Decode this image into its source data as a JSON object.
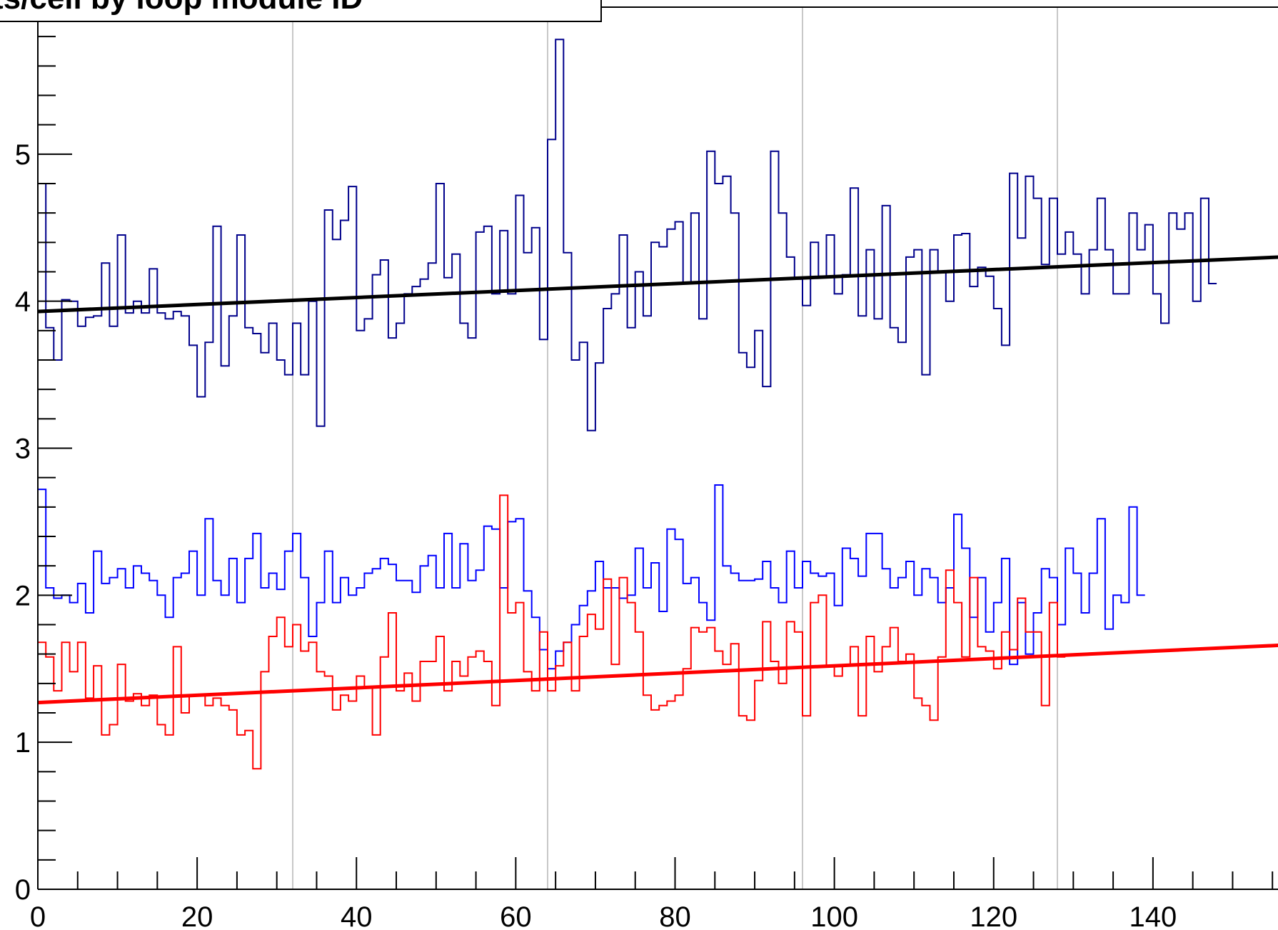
{
  "chart_data": {
    "type": "line",
    "title": "ts/cell by loop module ID",
    "xlabel": "",
    "ylabel": "",
    "xlim": [
      0,
      160
    ],
    "ylim": [
      0,
      6
    ],
    "x_ticks": [
      "0",
      "20",
      "40",
      "60",
      "80",
      "100",
      "120",
      "140"
    ],
    "y_ticks": [
      "0",
      "1",
      "2",
      "3",
      "4",
      "5"
    ],
    "vertical_guides": [
      32,
      64,
      96,
      128
    ],
    "grid": false,
    "legend": "none",
    "colors": {
      "series_a": "#00008b",
      "series_b": "#0000ff",
      "series_c": "#ff0000",
      "fit_a": "#000000",
      "fit_c": "#ff0000",
      "guides": "#c8c8c8"
    },
    "series": [
      {
        "style": "step",
        "color": "#00008b",
        "values": [
          4.8,
          3.82,
          3.6,
          4.01,
          4.0,
          3.83,
          3.89,
          3.9,
          4.26,
          3.83,
          4.45,
          3.92,
          4.0,
          3.92,
          4.22,
          3.92,
          3.88,
          3.93,
          3.9,
          3.7,
          3.35,
          3.72,
          4.51,
          3.56,
          3.9,
          4.45,
          3.82,
          3.78,
          3.65,
          3.85,
          3.6,
          3.5,
          3.85,
          3.5,
          4.0,
          3.15,
          4.62,
          4.42,
          4.55,
          4.78,
          3.8,
          3.88,
          4.18,
          4.28,
          3.75,
          3.85,
          4.05,
          4.1,
          4.15,
          4.26,
          4.8,
          4.16,
          4.32,
          3.85,
          3.75,
          4.47,
          4.51,
          4.05,
          4.48,
          4.05,
          4.72,
          4.33,
          4.5,
          3.74,
          5.1,
          5.78,
          4.33,
          3.6,
          3.72,
          3.12,
          3.58,
          3.95,
          4.05,
          4.45,
          3.82,
          4.2,
          3.9,
          4.4,
          4.37,
          4.49,
          4.54,
          4.12,
          4.6,
          3.88,
          5.02,
          4.8,
          4.85,
          4.6,
          3.65,
          3.55,
          3.8,
          3.42,
          5.02,
          4.6,
          4.3,
          4.15,
          3.97,
          4.4,
          4.17,
          4.45,
          4.05,
          4.18,
          4.77,
          3.9,
          4.35,
          3.88,
          4.65,
          3.82,
          3.72,
          4.3,
          4.35,
          3.5,
          4.35,
          4.2,
          4.0,
          4.45,
          4.46,
          4.1,
          4.23,
          4.17,
          3.95,
          3.7,
          4.87,
          4.43,
          4.85,
          4.7,
          4.25,
          4.7,
          4.32,
          4.47,
          4.32,
          4.05,
          4.35,
          4.7,
          4.35,
          4.05,
          4.05,
          4.6,
          4.35,
          4.52,
          4.05,
          3.85,
          4.6,
          4.49,
          4.6,
          4.0,
          4.7,
          4.12
        ]
      },
      {
        "style": "step",
        "color": "#0000ff",
        "values": [
          2.72,
          2.05,
          1.98,
          2.0,
          1.95,
          2.08,
          1.88,
          2.3,
          2.08,
          2.12,
          2.18,
          2.05,
          2.2,
          2.15,
          2.1,
          2.0,
          1.85,
          2.12,
          2.15,
          2.3,
          2.0,
          2.52,
          2.1,
          2.0,
          2.25,
          1.95,
          2.25,
          2.42,
          2.05,
          2.15,
          2.04,
          2.3,
          2.42,
          2.12,
          1.72,
          1.95,
          2.3,
          1.95,
          2.12,
          2.0,
          2.05,
          2.15,
          2.18,
          2.25,
          2.21,
          2.1,
          2.1,
          2.02,
          2.2,
          2.27,
          2.05,
          2.42,
          2.05,
          2.35,
          2.1,
          2.17,
          2.47,
          2.45,
          2.05,
          2.5,
          2.52,
          2.03,
          1.85,
          1.63,
          1.5,
          1.62,
          1.68,
          1.8,
          1.93,
          2.03,
          2.23,
          2.05,
          2.05,
          1.98,
          2.0,
          2.32,
          2.05,
          2.22,
          1.89,
          2.45,
          2.38,
          2.08,
          2.12,
          1.95,
          1.83,
          2.75,
          2.2,
          2.15,
          2.1,
          2.1,
          2.11,
          2.23,
          2.05,
          1.95,
          2.3,
          2.05,
          2.23,
          2.15,
          2.13,
          2.15,
          1.93,
          2.32,
          2.25,
          2.13,
          2.42,
          2.42,
          2.18,
          2.05,
          2.12,
          2.23,
          2.0,
          2.18,
          2.12,
          1.95,
          2.05,
          2.55,
          2.32,
          1.85,
          2.12,
          1.75,
          1.95,
          2.25,
          1.53,
          1.95,
          1.6,
          1.88,
          2.18,
          2.12,
          1.8,
          2.32,
          2.15,
          1.88,
          2.15,
          2.52,
          1.77,
          2.0,
          1.95,
          2.6,
          2.0
        ]
      },
      {
        "style": "step",
        "color": "#ff0000",
        "values": [
          1.68,
          1.58,
          1.35,
          1.68,
          1.48,
          1.68,
          1.3,
          1.52,
          1.05,
          1.12,
          1.53,
          1.28,
          1.33,
          1.25,
          1.32,
          1.12,
          1.05,
          1.65,
          1.2,
          1.32,
          1.32,
          1.25,
          1.3,
          1.25,
          1.22,
          1.05,
          1.08,
          0.82,
          1.48,
          1.72,
          1.85,
          1.65,
          1.8,
          1.62,
          1.68,
          1.48,
          1.45,
          1.22,
          1.32,
          1.28,
          1.45,
          1.38,
          1.05,
          1.58,
          1.88,
          1.35,
          1.47,
          1.28,
          1.55,
          1.55,
          1.72,
          1.35,
          1.55,
          1.45,
          1.58,
          1.62,
          1.55,
          1.25,
          2.68,
          1.88,
          1.95,
          1.48,
          1.35,
          1.75,
          1.35,
          1.52,
          1.68,
          1.35,
          1.72,
          1.87,
          1.77,
          2.11,
          1.53,
          2.12,
          1.95,
          1.75,
          1.32,
          1.22,
          1.25,
          1.28,
          1.32,
          1.5,
          1.78,
          1.75,
          1.78,
          1.62,
          1.53,
          1.67,
          1.18,
          1.15,
          1.42,
          1.82,
          1.55,
          1.4,
          1.82,
          1.75,
          1.18,
          1.95,
          2.0,
          1.52,
          1.45,
          1.52,
          1.65,
          1.18,
          1.72,
          1.48,
          1.65,
          1.78,
          1.55,
          1.6,
          1.3,
          1.25,
          1.15,
          1.58,
          2.17,
          1.95,
          1.58,
          2.12,
          1.65,
          1.62,
          1.5,
          1.75,
          1.63,
          1.98,
          1.75,
          1.75,
          1.25,
          1.95,
          1.58
        ]
      },
      {
        "style": "line",
        "color": "#000000",
        "x": [
          0,
          160
        ],
        "values": [
          3.93,
          4.31
        ]
      },
      {
        "style": "line",
        "color": "#ff0000",
        "x": [
          0,
          160
        ],
        "values": [
          1.27,
          1.67
        ]
      }
    ]
  }
}
